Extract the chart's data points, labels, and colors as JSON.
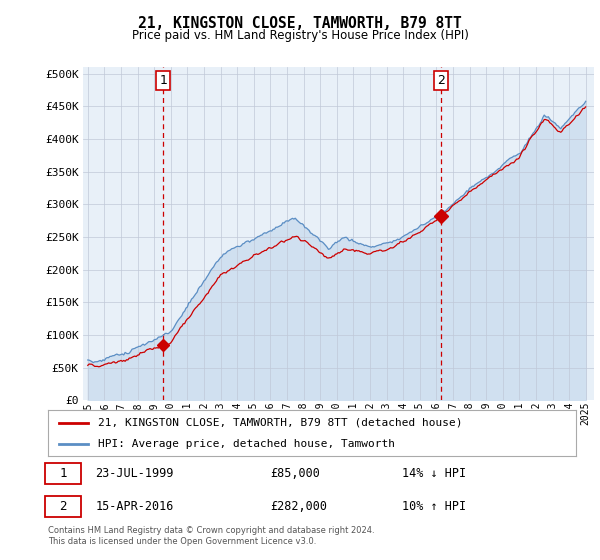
{
  "title": "21, KINGSTON CLOSE, TAMWORTH, B79 8TT",
  "subtitle": "Price paid vs. HM Land Registry's House Price Index (HPI)",
  "ylabel_ticks": [
    "£0",
    "£50K",
    "£100K",
    "£150K",
    "£200K",
    "£250K",
    "£300K",
    "£350K",
    "£400K",
    "£450K",
    "£500K"
  ],
  "ytick_values": [
    0,
    50000,
    100000,
    150000,
    200000,
    250000,
    300000,
    350000,
    400000,
    450000,
    500000
  ],
  "xlim_start": 1994.7,
  "xlim_end": 2025.5,
  "ylim": [
    0,
    510000
  ],
  "marker1_x": 1999.55,
  "marker1_y": 85000,
  "marker2_x": 2016.29,
  "marker2_y": 282000,
  "vline1_x": 1999.55,
  "vline2_x": 2016.29,
  "legend_line1": "21, KINGSTON CLOSE, TAMWORTH, B79 8TT (detached house)",
  "legend_line2": "HPI: Average price, detached house, Tamworth",
  "note1_label": "1",
  "note1_date": "23-JUL-1999",
  "note1_price": "£85,000",
  "note1_hpi": "14% ↓ HPI",
  "note2_label": "2",
  "note2_date": "15-APR-2016",
  "note2_price": "£282,000",
  "note2_hpi": "10% ↑ HPI",
  "footer": "Contains HM Land Registry data © Crown copyright and database right 2024.\nThis data is licensed under the Open Government Licence v3.0.",
  "hpi_color": "#5b8ec4",
  "hpi_fill_color": "#d0e0f0",
  "price_color": "#cc0000",
  "vline_color": "#cc0000",
  "background_color": "#ffffff",
  "chart_bg_color": "#e8f0f8",
  "grid_color": "#c0c8d8"
}
